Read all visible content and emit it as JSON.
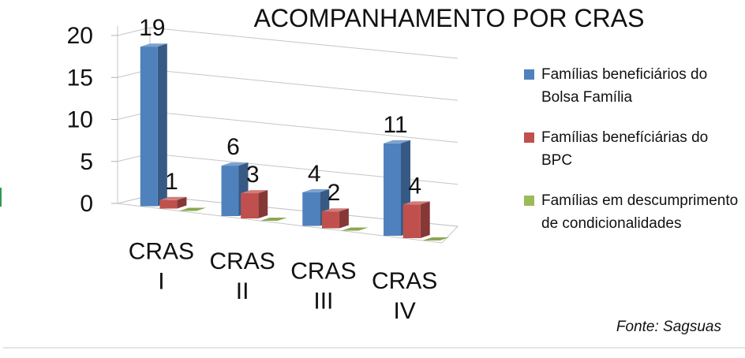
{
  "chart_data": {
    "type": "bar",
    "title": "ACOMPANHAMENTO POR CRAS",
    "categories": [
      "CRAS I",
      "CRAS II",
      "CRAS III",
      "CRAS IV"
    ],
    "category_lines": [
      [
        "CRAS",
        "I"
      ],
      [
        "CRAS",
        "II"
      ],
      [
        "CRAS",
        "III"
      ],
      [
        "CRAS",
        "IV"
      ]
    ],
    "series": [
      {
        "name": "Famílias beneficiários do Bolsa Família",
        "values": [
          19,
          6,
          4,
          11
        ],
        "color": "#4F81BD",
        "labels": [
          "19",
          "6",
          "4",
          "11"
        ]
      },
      {
        "name": "Famílias benefíciárias do BPC",
        "values": [
          1,
          3,
          2,
          4
        ],
        "color": "#C0504D",
        "labels": [
          "1",
          "3",
          "2",
          "4"
        ]
      },
      {
        "name": "Famílias em descumprimento de condicionalidades",
        "values": [
          0,
          0,
          0,
          0
        ],
        "color": "#9BBB59",
        "labels": [
          "",
          "",
          "",
          ""
        ]
      }
    ],
    "yticks": [
      "0",
      "5",
      "10",
      "15",
      "20"
    ],
    "ylim": [
      0,
      20
    ],
    "grid": true,
    "legend_position": "right",
    "source": "Fonte: Sagsuas"
  }
}
